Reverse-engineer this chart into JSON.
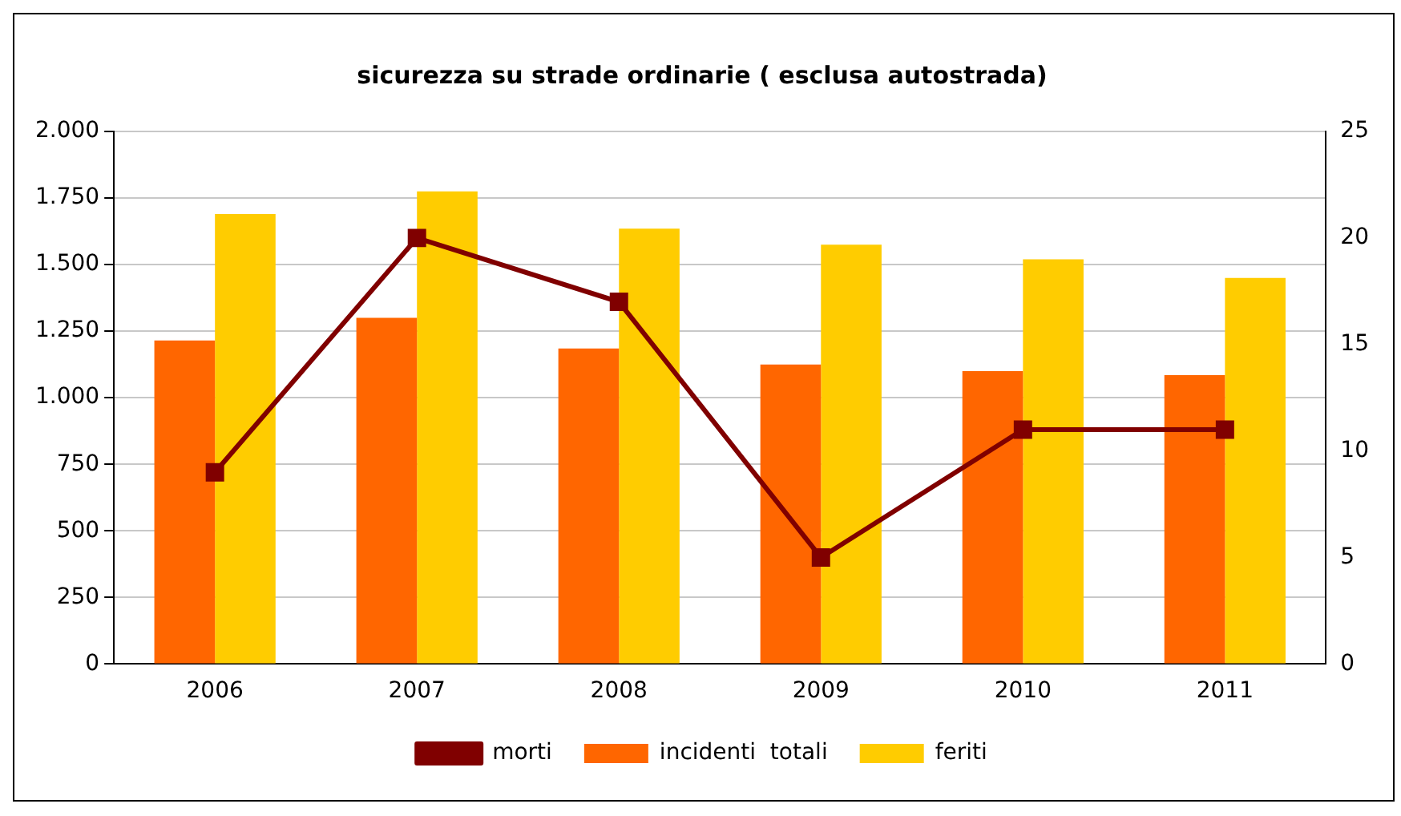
{
  "chart_data": {
    "type": "bar",
    "title": "sicurezza su strade ordinarie ( esclusa autostrada)",
    "categories": [
      "2006",
      "2007",
      "2008",
      "2009",
      "2010",
      "2011"
    ],
    "series": [
      {
        "name": "incidenti  totali",
        "color": "#ff6600",
        "values": [
          1215,
          1300,
          1185,
          1125,
          1100,
          1085
        ]
      },
      {
        "name": "feriti",
        "color": "#ffcc00",
        "values": [
          1690,
          1775,
          1635,
          1575,
          1520,
          1450
        ]
      },
      {
        "name": "morti",
        "type": "line",
        "axis": "y2",
        "color": "#800000",
        "marker": "square",
        "values": [
          9,
          20,
          17,
          5,
          11,
          11
        ]
      }
    ],
    "ylim": [
      0,
      2000
    ],
    "yticks": [
      0,
      250,
      500,
      750,
      {
        "value": 1000,
        "label": "1.000"
      },
      {
        "value": 1250,
        "label": "1.250"
      },
      {
        "value": 1500,
        "label": "1.500"
      },
      {
        "value": 1750,
        "label": "1.750"
      },
      {
        "value": 2000,
        "label": "2.000"
      }
    ],
    "y2lim": [
      0,
      25
    ],
    "y2ticks": [
      0,
      5,
      10,
      15,
      20,
      25
    ],
    "grid": "y",
    "legend": "bottom"
  }
}
